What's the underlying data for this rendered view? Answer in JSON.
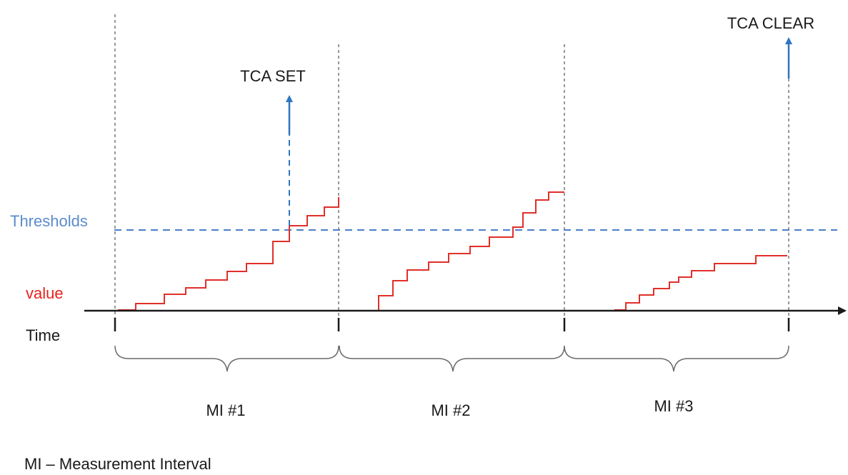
{
  "labels": {
    "tca_set": "TCA SET",
    "tca_clear": "TCA CLEAR",
    "thresholds": "Thresholds",
    "value": "value",
    "time": "Time",
    "legend": "MI – Measurement Interval"
  },
  "intervals": [
    {
      "label": "MI #1"
    },
    {
      "label": "MI #2"
    },
    {
      "label": "MI #3"
    }
  ],
  "colors": {
    "value_line": "#e0302a",
    "threshold_line": "#4a7fc8",
    "event_arrow": "#2e75c0",
    "value_label": "#e8231d",
    "threshold_label": "#5b8ccc",
    "axis": "#1a1a1a",
    "divider": "#777777",
    "brace": "#6a6a6a",
    "text": "#1a1a1a"
  }
}
